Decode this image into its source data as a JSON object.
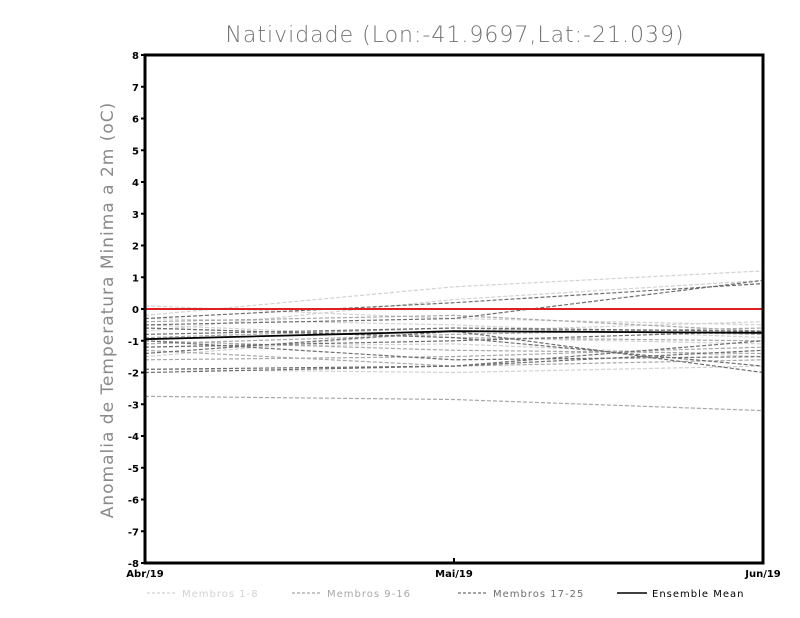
{
  "chart_data": {
    "type": "line",
    "title": "Natividade (Lon:-41.9697,Lat:-21.039)",
    "xlabel": "",
    "ylabel": "Anomalia de Temperatura Minima a 2m (oC)",
    "ylim": [
      -8,
      8
    ],
    "yticks": [
      "8",
      "7",
      "6",
      "5",
      "4",
      "3",
      "2",
      "1",
      "0",
      "-1",
      "-2",
      "-3",
      "-4",
      "-5",
      "-6",
      "-7",
      "-8"
    ],
    "categories": [
      "Abr/19",
      "Mai/19",
      "Jun/19"
    ],
    "legend": [
      {
        "label": "Membros 1-8",
        "color": "#d2d2d2",
        "dash": "dashed"
      },
      {
        "label": "Membros 9-16",
        "color": "#a8a8a8",
        "dash": "dashed"
      },
      {
        "label": "Membros 17-25",
        "color": "#6e6e6e",
        "dash": "dashed"
      },
      {
        "label": "Ensemble Mean",
        "color": "#000000",
        "dash": "solid"
      }
    ],
    "groups": [
      {
        "name": "Membros 1-8",
        "color": "#d2d2d2",
        "series": [
          [
            -0.2,
            0.7,
            1.2
          ],
          [
            0.1,
            -0.3,
            -0.5
          ],
          [
            -0.5,
            -0.9,
            -1.1
          ],
          [
            -1.2,
            -1.1,
            -1.5
          ],
          [
            -1.9,
            -2.0,
            -1.8
          ],
          [
            -0.7,
            0.3,
            0.9
          ],
          [
            -1.5,
            -0.7,
            -0.4
          ],
          [
            -0.3,
            -0.5,
            -0.9
          ]
        ]
      },
      {
        "name": "Membros 9-16",
        "color": "#a8a8a8",
        "series": [
          [
            -2.75,
            -2.85,
            -3.2
          ],
          [
            -1.6,
            -1.5,
            -1.2
          ],
          [
            -0.9,
            -0.6,
            -0.8
          ],
          [
            -1.3,
            -1.8,
            -1.6
          ],
          [
            -0.4,
            -0.2,
            -0.7
          ],
          [
            -1.0,
            -1.3,
            -1.4
          ],
          [
            -0.6,
            -0.9,
            -1.0
          ],
          [
            -1.1,
            -0.8,
            -0.6
          ]
        ]
      },
      {
        "name": "Membros 17-25",
        "color": "#6e6e6e",
        "series": [
          [
            -0.3,
            0.2,
            0.8
          ],
          [
            -2.0,
            -1.8,
            -1.0
          ],
          [
            -1.4,
            -0.7,
            -2.0
          ],
          [
            -0.8,
            -0.6,
            -0.7
          ],
          [
            -1.0,
            -1.6,
            -1.5
          ],
          [
            -0.5,
            -0.3,
            0.9
          ],
          [
            -1.2,
            -1.0,
            -0.7
          ],
          [
            -1.9,
            -1.8,
            -1.3
          ],
          [
            -0.6,
            -0.9,
            -1.8
          ]
        ]
      }
    ],
    "ensemble_mean": {
      "name": "Ensemble Mean",
      "color": "#000000",
      "values": [
        -0.95,
        -0.7,
        -0.75
      ]
    },
    "zero_line": {
      "color": "#e02020",
      "values": [
        0,
        0,
        0
      ]
    }
  }
}
